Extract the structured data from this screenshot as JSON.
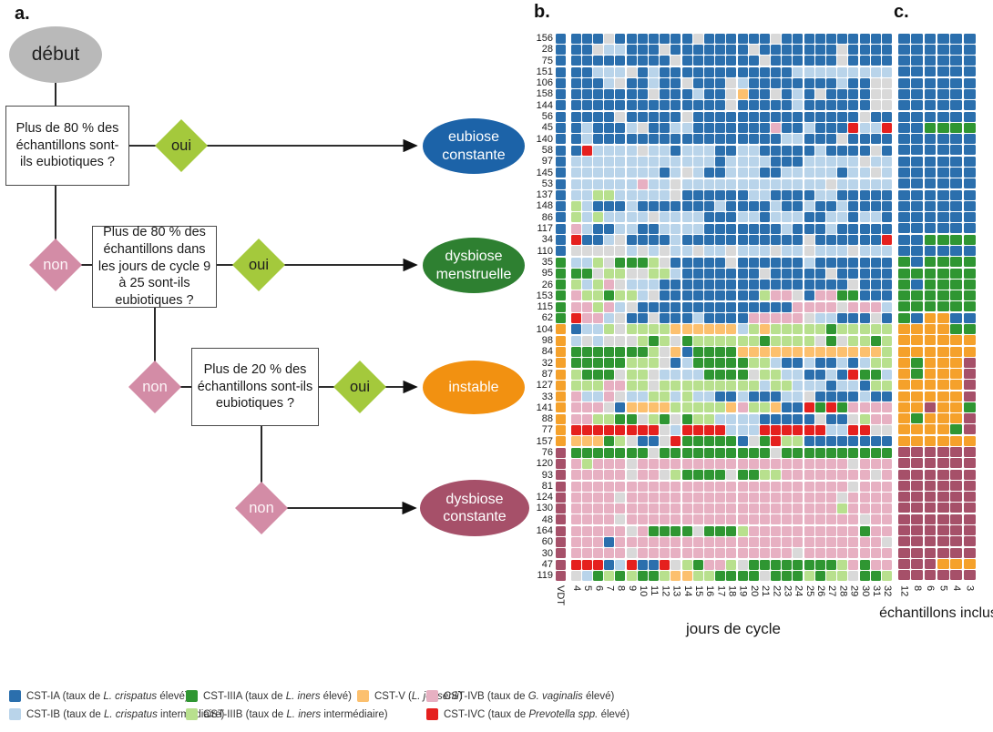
{
  "panels": {
    "a": "a.",
    "b": "b.",
    "c": "c."
  },
  "flowchart": {
    "start": "début",
    "q1": "Plus de 80 % des échantillons sont-ils eubiotiques ?",
    "q2": "Plus de 80 % des échantillons dans les jours de cycle 9 à 25 sont-ils eubiotiques ?",
    "q3": "Plus de 20 % des échantillons sont-ils eubiotiques ?",
    "oui": "oui",
    "non": "non",
    "outcome_eubiose": "eubiose constante",
    "outcome_menstruelle": "dysbiose menstruelle",
    "outcome_instable": "instable",
    "outcome_constante": "dysbiose constante"
  },
  "colors": {
    "start_ellipse": "#b9b9b9",
    "eubiose_ellipse": "#1c63a8",
    "menstruelle_ellipse": "#2e8031",
    "instable_ellipse": "#f29111",
    "constante_ellipse": "#a65069",
    "oui_diamond": "#a4c93c",
    "non_diamond": "#d38ca6"
  },
  "palette": {
    "A": "#2b6fad",
    "B": "#b9d4ea",
    "C": "#2f9632",
    "D": "#b8e08e",
    "E": "#fcc06e",
    "F": "#e7b0c2",
    "G": "#e5201e",
    "O": "#f5a12b",
    "M": "#a65069",
    "X": "#d9d9d9"
  },
  "palette_meaning": {
    "A": "CST-IA",
    "B": "CST-IB",
    "C": "CST-IIIA",
    "D": "CST-IIIB",
    "E": "CST-V",
    "F": "CST-IVB",
    "G": "CST-IVC",
    "O": "VDT instable",
    "M": "VDT dysbiose constante",
    "X": "gris"
  },
  "chart_data": [
    {
      "type": "heatmap",
      "panel": "b",
      "xlabel": "jours de cycle",
      "columns": [
        "VDT",
        "4",
        "5",
        "6",
        "7",
        "8",
        "9",
        "10",
        "11",
        "12",
        "13",
        "14",
        "15",
        "16",
        "17",
        "18",
        "19",
        "20",
        "21",
        "22",
        "23",
        "24",
        "25",
        "26",
        "27",
        "28",
        "29",
        "30",
        "31",
        "32"
      ],
      "rows": [
        "156",
        "28",
        "75",
        "151",
        "106",
        "158",
        "144",
        "56",
        "45",
        "140",
        "58",
        "97",
        "145",
        "53",
        "137",
        "148",
        "86",
        "117",
        "34",
        "110",
        "35",
        "95",
        "26",
        "153",
        "115",
        "62",
        "104",
        "98",
        "84",
        "32",
        "87",
        "127",
        "33",
        "141",
        "88",
        "77",
        "157",
        "76",
        "120",
        "93",
        "81",
        "124",
        "130",
        "48",
        "164",
        "60",
        "30",
        "47",
        "119"
      ],
      "cells": [
        "AAAAXAAAAAAAXAAAAAAXAAAAAAAAAA",
        "AAAXBBAAAXAAAAAAAXAAAAAAAXAAAA",
        "AAAAAAAAAAXAAAAAAAXAAAAAAXAAAA",
        "AAABBBXABAAAAAAAAAAAABBBBBBBBB",
        "AAAABXAABAAXAAAXBAAAAAAAABAAXX",
        "AAAAAAAAXAAABAAXEAAXABAXAAAAXX",
        "AAAAAAAAAAAAAAAXAAAAABAAAAAAXX",
        "AAAAAXAAAAAXAAAAAAAAAAAAAAAXAA",
        "AABAAABXAABBAAAAAAAFAABAAAGBBG",
        "AABAAAAAAAAAAAAAAAAABBAAAXAAAA",
        "AAGBBBBXBBABBBAABBAAAAABAAAAXA",
        "ABBBBBBBBBBBBBABBBBAAABBBBBXBB",
        "ABBBBBBBBABXBAABBBAABBBBBABBXB",
        "ABBBBBBFBBXBBBBBBBBBBBBBXBBBBB",
        "ABBDDBBBBBXAAAAAABBAAAABBAAAAA",
        "ADBAAABAAAAAAABAAAABAABAABAAAA",
        "ADBDBBBBXBBBBAAABBABBBAABBABBA",
        "AFBAABBAABBBBAAAAAAABAAABAAAAA",
        "AGAABXAAAABAAAAAAAAAAAXAAAAAAG",
        "AXXXXXBXBXBBXBBXBBBXBBXBBBXBBB",
        "CBBDXCCCDXAAAAAXAAAAAABAAAAAAA",
        "CCCXDDXXDDBAAAAAAAXAAAAAXAAAAA",
        "CDBDFXBBBAAAAAAAAAAAAAAAAAXAAA",
        "CFDDCDDBXAAAAAAAAADFFXAFFCCAAA",
        "CFFDFBXAAAAAAAAAAAAAAFFFFXFFFB",
        "CGFFBXAAXAAABAAAAFFFFFXBBAAAXA",
        "OABBDXDDDDEEEEEEBDEDDDDDCDDDDD",
        "OBXBXXXDCDXCDDDDDDCDDDDXCXDDCD",
        "OCCCCCCCDXEACCCCEEEEEEEEEEEEED",
        "OCCCCCDDDXABCCCCCDDBAABAABABDD",
        "ODCCCXDDXBBBBCCCCXDDBBAABAGCCB",
        "ODDDFFDDXDDDDDDDDDBDDBBBABBADD",
        "OFBBFXBBDDBDBBAABAAABBXAAAABAA",
        "OFFFXAEEEEDDDDDEFDDEAAGCGCFFFF",
        "OFFDDCCXDCXCDDBBBBAAAAAXAAXDFF",
        "OGGGGGGGGXBGGGGBBBGGGGGGBBGGXX",
        "OEEECDXAAXGCCCCCAXCGDDAAAAAAAA",
        "MCCCCCCCXCCCCCCCCCCXCCCCCCCCCC",
        "MFDFFFXFFFFFFFFFFFFFFFFFFFXFFF",
        "MFFFFFXFFXDCCCCXCCDDFFFFFFFFXF",
        "MFFFFFFFFFFFFFFFFFFFFFFFFFXFFF",
        "MFFFFXFFFFFFFFFFFFFFFFFFFXFFFF",
        "MFFFFFFFFFFFFFFFFFFFFFFFFDFFFF",
        "MFFFFXFFFFFFFFFFFFFFFFFFFFFXFF",
        "MFFFFFXFCCCCXCCCDFFFFFFFFFFCFF",
        "MFFFAFFFFFFFFFFFFFFFFFFFFFFFFX",
        "MFFFFFXFFFFFFFFFFFFFFXFFFFFFFF",
        "MGGGABGAAGXDCFFDXCCCCCCCCDFCFF",
        "MXBCDCDCCDEEDDCCCCXCCCDCDDXCCD"
      ]
    },
    {
      "type": "heatmap",
      "panel": "c",
      "xlabel": "échantillons inclus",
      "columns": [
        "12",
        "8",
        "6",
        "5",
        "4",
        "3"
      ],
      "rows": [
        "156",
        "28",
        "75",
        "151",
        "106",
        "158",
        "144",
        "56",
        "45",
        "140",
        "58",
        "97",
        "145",
        "53",
        "137",
        "148",
        "86",
        "117",
        "34",
        "110",
        "35",
        "95",
        "26",
        "153",
        "115",
        "62",
        "104",
        "98",
        "84",
        "32",
        "87",
        "127",
        "33",
        "141",
        "88",
        "77",
        "157",
        "76",
        "120",
        "93",
        "81",
        "124",
        "130",
        "48",
        "164",
        "60",
        "30",
        "47",
        "119"
      ],
      "cells": [
        "AAAAAA",
        "AAAAAA",
        "AAAAAA",
        "AAAAAA",
        "AAAAAA",
        "AAAAAA",
        "AAAAAA",
        "AAAAAA",
        "AACCCC",
        "AAAAAA",
        "AAAAAA",
        "AAAAAA",
        "AAAAAA",
        "AAAAAA",
        "AAAAAA",
        "AAAAAA",
        "AAAAAA",
        "AAAAAA",
        "AACCCC",
        "AAAAAA",
        "CACCCC",
        "CCCCCC",
        "CACCCC",
        "CCCCCC",
        "CCCCCC",
        "CAOOAA",
        "OOOOCC",
        "OOOOOO",
        "OOOOOO",
        "OCOOOM",
        "OCOOOM",
        "OOOOOM",
        "OOOOOM",
        "OOMOOC",
        "OCOOOM",
        "OOOOCM",
        "OOOOOO",
        "MMMMMM",
        "MMMMMM",
        "MMMMMM",
        "MMMMMM",
        "MMMMMM",
        "MMMMMM",
        "MMMMMM",
        "MMMMMM",
        "MMMMMM",
        "MMMMMM",
        "MMMOOO",
        "MMMMMM"
      ]
    }
  ],
  "legend": {
    "groups": [
      [
        {
          "code": "A",
          "pre": "CST-IA (taux de ",
          "it": "L. crispatus",
          "post": " élevé)"
        },
        {
          "code": "B",
          "pre": "CST-IB (taux de ",
          "it": "L. crispatus",
          "post": " intermédiaire)"
        }
      ],
      [
        {
          "code": "C",
          "pre": "CST-IIIA (taux de ",
          "it": "L. iners",
          "post": " élevé)"
        },
        {
          "code": "D",
          "pre": "CST-IIIB (taux de ",
          "it": "L. iners",
          "post": " intermédiaire)"
        }
      ],
      [
        {
          "code": "E",
          "pre": "CST-V (",
          "it": "L. jensenii",
          "post": ")"
        }
      ],
      [
        {
          "code": "F",
          "pre": "CST-IVB (taux de ",
          "it": "G. vaginalis",
          "post": " élevé)"
        },
        {
          "code": "G",
          "pre": "CST-IVC (taux de ",
          "it": "Prevotella spp.",
          "post": " élevé)"
        }
      ]
    ]
  }
}
